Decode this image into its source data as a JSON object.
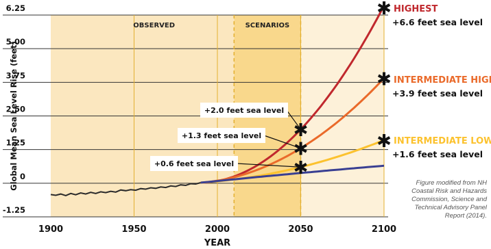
{
  "chart_data": {
    "type": "line",
    "xlabel": "YEAR",
    "ylabel": "Global Mean Sea Level Rise (feet)",
    "xlim": [
      1900,
      2100
    ],
    "ylim": [
      -1.25,
      6.25
    ],
    "x_ticks": [
      "1900",
      "1950",
      "2000",
      "2050",
      "2100"
    ],
    "y_ticks": [
      "6.25",
      "5.00",
      "3.75",
      "2.50",
      "1.25",
      "0",
      "-1.25"
    ],
    "x_tick_values": [
      1900,
      1950,
      2000,
      2050,
      2100
    ],
    "y_tick_values": [
      6.25,
      5.0,
      3.75,
      2.5,
      1.25,
      0,
      -1.25
    ],
    "grid": true,
    "regions": [
      {
        "label": "OBSERVED",
        "x": [
          1900,
          2010
        ]
      },
      {
        "label": "SCENARIOS",
        "x": [
          2010,
          2050
        ]
      }
    ],
    "colors": {
      "observed_region": "#fbe7bf",
      "scenario_region": "#f9d88c",
      "later_region": "#fdf1d9",
      "gridline": "#e3b030",
      "observed_line": "#2a2a2a"
    },
    "observed": {
      "x": [
        1900,
        1903,
        1906,
        1909,
        1912,
        1915,
        1918,
        1921,
        1924,
        1927,
        1930,
        1933,
        1936,
        1939,
        1942,
        1945,
        1948,
        1951,
        1954,
        1957,
        1960,
        1963,
        1966,
        1969,
        1972,
        1975,
        1978,
        1981,
        1984,
        1987,
        1990
      ],
      "y": [
        -0.42,
        -0.45,
        -0.4,
        -0.46,
        -0.38,
        -0.43,
        -0.36,
        -0.4,
        -0.34,
        -0.38,
        -0.32,
        -0.35,
        -0.3,
        -0.33,
        -0.25,
        -0.28,
        -0.24,
        -0.26,
        -0.2,
        -0.22,
        -0.17,
        -0.19,
        -0.14,
        -0.16,
        -0.1,
        -0.12,
        -0.06,
        -0.08,
        -0.02,
        -0.03,
        0.02
      ]
    },
    "series": [
      {
        "name": "HIGHEST",
        "label": "+6.6 feet sea level",
        "color": "#c0282d",
        "end": 6.6,
        "at2050": 2.0
      },
      {
        "name": "INTERMEDIATE HIGH",
        "label": "+3.9 feet sea level",
        "color": "#ea6a2a",
        "end": 3.9,
        "at2050": 1.3
      },
      {
        "name": "INTERMEDIATE LOW",
        "label": "+1.6 feet sea level",
        "color": "#fcc22e",
        "end": 1.6,
        "at2050": 0.6
      },
      {
        "name": "",
        "label": "",
        "color": "#393f92",
        "end": 0.65,
        "at2050": 0.38
      }
    ],
    "callouts": [
      {
        "text": "+2.0 feet sea level",
        "value": 2.0
      },
      {
        "text": "+1.3 feet sea level",
        "value": 1.3
      },
      {
        "text": "+0.6 feet sea level",
        "value": 0.6
      }
    ]
  },
  "credit": "Figure modified from NH Coastal Risk and Hazards Commission, Science and Technical Advisory Panel Report (2014)."
}
